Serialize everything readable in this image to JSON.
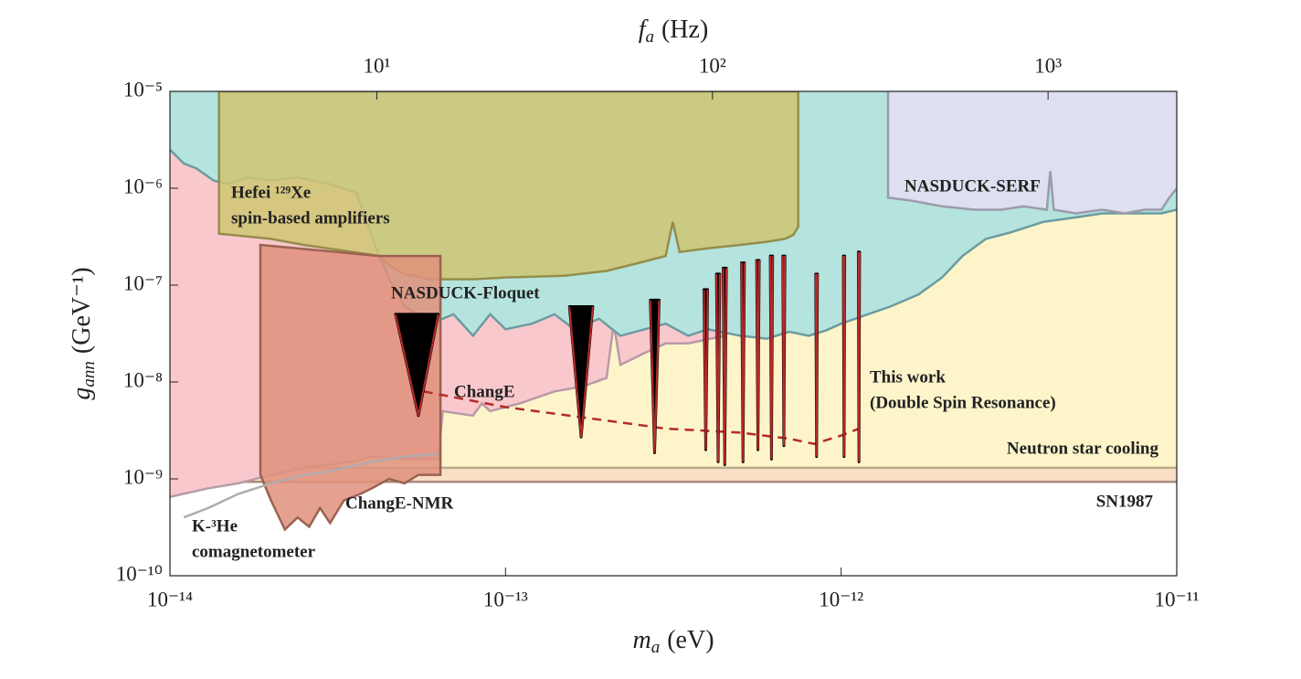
{
  "chart_data": {
    "type": "exclusion",
    "log": true,
    "xlabel": {
      "symbol": "m",
      "subscript": "a",
      "unit": "(eV)"
    },
    "ylabel": {
      "symbol": "g",
      "subscript": "ann",
      "unit": "(GeV⁻¹)"
    },
    "x2label": {
      "symbol": "f",
      "subscript": "a",
      "unit": "(Hz)"
    },
    "xlim": [
      1e-14,
      1e-11
    ],
    "ylim": [
      1e-10,
      1e-05
    ],
    "x2lim": [
      2.418,
      2418
    ],
    "xticks": [
      {
        "value": 1e-14,
        "label": "10⁻¹⁴"
      },
      {
        "value": 1e-13,
        "label": "10⁻¹³"
      },
      {
        "value": 1e-12,
        "label": "10⁻¹²"
      },
      {
        "value": 1e-11,
        "label": "10⁻¹¹"
      }
    ],
    "yticks": [
      {
        "value": 1e-10,
        "label": "10⁻¹⁰"
      },
      {
        "value": 1e-09,
        "label": "10⁻⁹"
      },
      {
        "value": 1e-08,
        "label": "10⁻⁸"
      },
      {
        "value": 1e-07,
        "label": "10⁻⁷"
      },
      {
        "value": 1e-06,
        "label": "10⁻⁶"
      },
      {
        "value": 1e-05,
        "label": "10⁻⁵"
      }
    ],
    "x2ticks": [
      {
        "value": 10,
        "label": "10¹"
      },
      {
        "value": 100,
        "label": "10²"
      },
      {
        "value": 1000,
        "label": "10³"
      }
    ],
    "series": [
      {
        "name": [
          "SN1987"
        ],
        "kind": "fill_above",
        "color": "#f8dfc6",
        "line_color": "#a88b7c",
        "label_color": "#b9a08f",
        "x": [
          1e-14,
          1e-11
        ],
        "y": [
          9.3e-10,
          9.3e-10
        ]
      },
      {
        "name": [
          "Neutron star cooling"
        ],
        "kind": "fill_above",
        "color": "#fdf5c9",
        "line_color": "#b7ad8d",
        "label_color": "#b8ab8e",
        "x": [
          1e-14,
          1e-11
        ],
        "y": [
          1.3e-09,
          1.3e-09
        ]
      },
      {
        "name": [
          "ChangE"
        ],
        "kind": "fill_above",
        "color": "#f9c8cd",
        "line_color": "#b89aa8",
        "label_color": "#c98d9c",
        "x": [
          1e-14,
          1.3e-14,
          1.6e-14,
          2e-14,
          2.5e-14,
          3e-14,
          3.5e-14,
          4e-14,
          5e-14,
          6.3e-14,
          6.5e-14,
          8e-14,
          8.5e-14,
          9e-14,
          1.1e-13,
          1.4e-13,
          1.7e-13,
          2e-13,
          2.1e-13,
          2.2e-13,
          2.6e-13,
          3e-13,
          3.5e-13,
          4.5e-13
        ],
        "y": [
          6.5e-10,
          8e-10,
          9e-10,
          1.1e-09,
          1.3e-09,
          1.4e-09,
          1.5e-09,
          1.7e-09,
          1.6e-09,
          1.6e-09,
          5e-09,
          4.5e-09,
          6e-09,
          5e-09,
          6e-09,
          8e-09,
          9e-09,
          1.1e-08,
          4e-08,
          1.5e-08,
          2e-08,
          2.5e-08,
          2.5e-08,
          3e-08
        ]
      },
      {
        "name": [
          "NASDUCK-Floquet"
        ],
        "kind": "fill_above",
        "color": "#b4e4dd",
        "line_color": "#6c9ba1",
        "label_color": "#6f9fa9",
        "x": [
          1e-14,
          1.1e-14,
          1.2e-14,
          1.35e-14,
          1.5e-14,
          1.7e-14,
          2e-14,
          2.4e-14,
          3e-14,
          3.6e-14,
          4.2e-14,
          4.6e-14,
          5e-14,
          5.5e-14,
          6e-14,
          7e-14,
          8e-14,
          9e-14,
          1e-13,
          1.2e-13,
          1.4e-13,
          1.6e-13,
          1.9e-13,
          2.2e-13,
          2.6e-13,
          3e-13,
          3.5e-13,
          4e-13,
          5e-13,
          6e-13,
          7e-13,
          8e-13,
          9e-13,
          1e-12,
          1.2e-12,
          1.4e-12,
          1.7e-12,
          2e-12,
          2.3e-12,
          2.7e-12,
          3.2e-12,
          4e-12,
          5e-12,
          6e-12,
          7e-12,
          8e-12,
          9e-12,
          1e-11
        ],
        "y": [
          2.5e-06,
          1.8e-06,
          1.6e-06,
          1.2e-06,
          1.1e-06,
          1.3e-06,
          1.2e-06,
          1.3e-06,
          1.1e-06,
          9e-07,
          2e-07,
          1e-07,
          6e-08,
          5e-08,
          4e-08,
          5e-08,
          3e-08,
          5e-08,
          3.5e-08,
          4e-08,
          5e-08,
          3.5e-08,
          4.5e-08,
          3e-08,
          3.5e-08,
          4e-08,
          3e-08,
          3.5e-08,
          3e-08,
          2.8e-08,
          3.3e-08,
          3e-08,
          3.4e-08,
          4e-08,
          5e-08,
          6e-08,
          8e-08,
          1.2e-07,
          2e-07,
          3e-07,
          3.5e-07,
          4.5e-07,
          5e-07,
          5.5e-07,
          5.5e-07,
          5.5e-07,
          5.5e-07,
          6e-07
        ]
      },
      {
        "name": [
          "NASDUCK-SERF"
        ],
        "kind": "fill_above",
        "color": "#dedff0",
        "line_color": "#9b9bab",
        "label_color": "#9e9eae",
        "x": [
          1.38e-12,
          1.38e-12,
          1.6e-12,
          2e-12,
          2.5e-12,
          3e-12,
          3.5e-12,
          4.1e-12,
          4.2e-12,
          4.3e-12,
          5e-12,
          6e-12,
          7e-12,
          8e-12,
          9e-12,
          9.5e-12,
          1e-11
        ],
        "y": [
          1e-05,
          8e-07,
          7.5e-07,
          6.5e-07,
          6e-07,
          6e-07,
          6.5e-07,
          6e-07,
          1.5e-06,
          6e-07,
          5.5e-07,
          6e-07,
          5.5e-07,
          6e-07,
          6e-07,
          8e-07,
          1e-06
        ]
      },
      {
        "name": [
          "Hefei ¹²⁹Xe",
          "spin-based amplifiers"
        ],
        "kind": "polygon",
        "color": "#cfc672",
        "line_color": "#958d4c",
        "label_color": "#857d3e",
        "x": [
          1.4e-14,
          1.4e-14,
          2e-14,
          2.5e-14,
          3.5e-14,
          4.2e-14,
          4.5e-14,
          5e-14,
          6e-14,
          8e-14,
          1e-13,
          1.5e-13,
          2e-13,
          2.5e-13,
          3e-13,
          3.15e-13,
          3.3e-13,
          4e-13,
          5e-13,
          6e-13,
          6.8e-13,
          7.2e-13,
          7.45e-13,
          7.45e-13
        ],
        "y": [
          1e-05,
          3.4e-07,
          3e-07,
          2.6e-07,
          2.2e-07,
          2e-07,
          1.6e-07,
          1.3e-07,
          1.15e-07,
          1.15e-07,
          1.2e-07,
          1.25e-07,
          1.4e-07,
          1.7e-07,
          2e-07,
          4.5e-07,
          2.2e-07,
          2.4e-07,
          2.6e-07,
          2.8e-07,
          3e-07,
          3.3e-07,
          4e-07,
          1e-05
        ]
      },
      {
        "name": [
          "ChangE-NMR"
        ],
        "kind": "polygon",
        "color": "#e1907b",
        "line_color": "#9a6252",
        "label_color": "#a0584a",
        "x": [
          1.86e-14,
          1.86e-14,
          2e-14,
          2.2e-14,
          2.4e-14,
          2.6e-14,
          2.8e-14,
          3e-14,
          3.3e-14,
          3.7e-14,
          4e-14,
          4.5e-14,
          5e-14,
          5.5e-14,
          6.4e-14,
          6.4e-14,
          4.2e-14,
          1.86e-14
        ],
        "y": [
          2.6e-07,
          1.1e-09,
          6e-10,
          3e-10,
          4e-10,
          3.2e-10,
          5e-10,
          3.5e-10,
          6e-10,
          7e-10,
          8e-10,
          1e-09,
          9e-10,
          1.1e-09,
          1.1e-09,
          2e-07,
          2e-07,
          2.6e-07
        ]
      },
      {
        "name": [
          "K-³He",
          "comagnetometer"
        ],
        "kind": "line",
        "color": "#b3abab",
        "line_color": "#b3abab",
        "label_color": "#aaa2a2",
        "x": [
          1.1e-14,
          1.3e-14,
          1.6e-14,
          2e-14,
          2.5e-14,
          3e-14,
          4e-14,
          5e-14,
          6.3e-14
        ],
        "y": [
          4e-10,
          5e-10,
          7e-10,
          9e-10,
          1.1e-09,
          1.2e-09,
          1.5e-09,
          1.7e-09,
          1.8e-09
        ]
      },
      {
        "name": [
          "This work",
          "(Double Spin Resonance)"
        ],
        "kind": "resonance",
        "color": "#b52a2a",
        "line_color": "#b52a2a",
        "label_color": "#b52a2a",
        "x": [
          5.7e-14,
          1e-13,
          2e-13,
          3e-13,
          5e-13,
          7e-13,
          8.3e-13,
          1e-12,
          1.13e-12
        ],
        "y": [
          8e-09,
          5.5e-09,
          4e-09,
          3.3e-09,
          3e-09,
          2.6e-09,
          2.3e-09,
          2.8e-09,
          3.3e-09
        ],
        "resonances": [
          {
            "x_left": 4.7e-14,
            "x": 5.5e-14,
            "x_right": 6.3e-14,
            "top": 5e-08,
            "bottom": 4.5e-09
          },
          {
            "x_left": 1.55e-13,
            "x": 1.68e-13,
            "x_right": 1.82e-13,
            "top": 6e-08,
            "bottom": 2.7e-09
          },
          {
            "x_left": 2.7e-13,
            "x": 2.78e-13,
            "x_right": 2.87e-13,
            "top": 7e-08,
            "bottom": 1.86e-09
          },
          {
            "x_left": 3.9e-13,
            "x": 3.95e-13,
            "x_right": 4e-13,
            "top": 9e-08,
            "bottom": 2e-09
          },
          {
            "x_left": 4.25e-13,
            "x": 4.3e-13,
            "x_right": 4.35e-13,
            "top": 1.3e-07,
            "bottom": 1.5e-09
          },
          {
            "x_left": 4.45e-13,
            "x": 4.5e-13,
            "x_right": 4.55e-13,
            "top": 1.5e-07,
            "bottom": 1.4e-09
          },
          {
            "x_left": 5.05e-13,
            "x": 5.1e-13,
            "x_right": 5.15e-13,
            "top": 1.7e-07,
            "bottom": 1.5e-09
          },
          {
            "x_left": 5.6e-13,
            "x": 5.65e-13,
            "x_right": 5.7e-13,
            "top": 1.8e-07,
            "bottom": 2e-09
          },
          {
            "x_left": 6.15e-13,
            "x": 6.2e-13,
            "x_right": 6.25e-13,
            "top": 2e-07,
            "bottom": 1.6e-09
          },
          {
            "x_left": 6.7e-13,
            "x": 6.75e-13,
            "x_right": 6.8e-13,
            "top": 2e-07,
            "bottom": 2.2e-09
          },
          {
            "x_left": 8.4e-13,
            "x": 8.45e-13,
            "x_right": 8.5e-13,
            "top": 1.3e-07,
            "bottom": 1.7e-09
          },
          {
            "x_left": 1.015e-12,
            "x": 1.02e-12,
            "x_right": 1.025e-12,
            "top": 2e-07,
            "bottom": 1.7e-09
          },
          {
            "x_left": 1.125e-12,
            "x": 1.13e-12,
            "x_right": 1.135e-12,
            "top": 2.2e-07,
            "bottom": 1.5e-09
          }
        ]
      }
    ]
  }
}
